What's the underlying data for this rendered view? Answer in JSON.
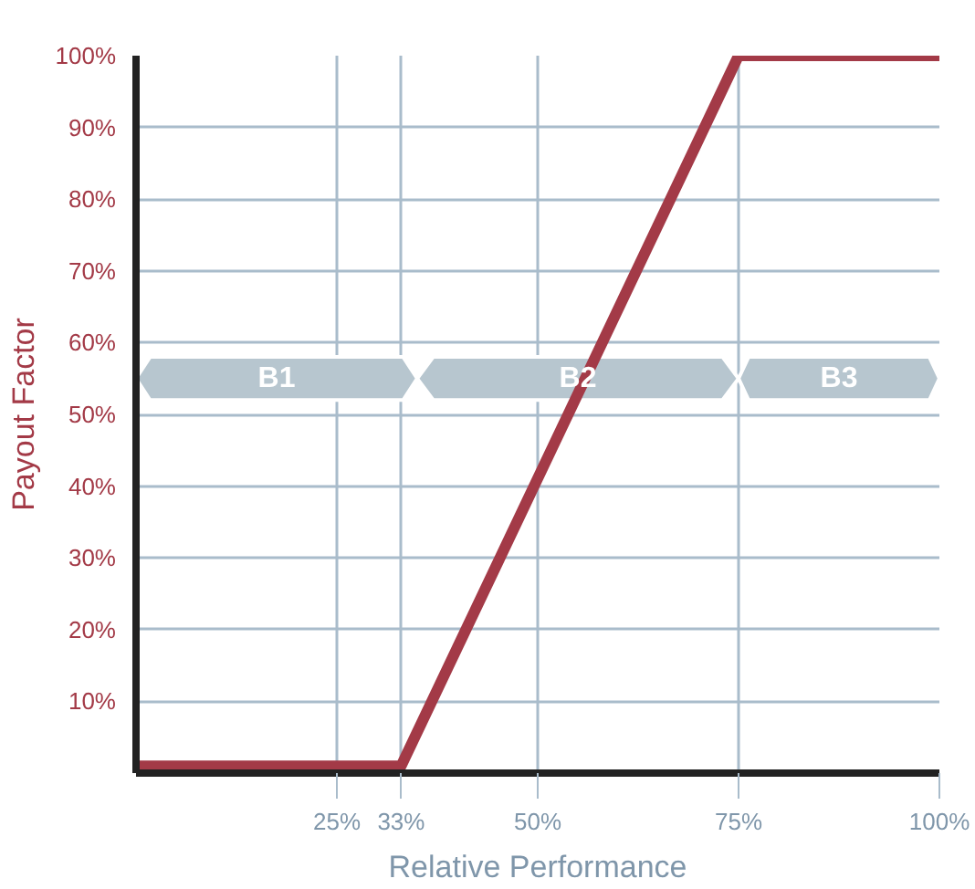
{
  "chart_data": {
    "type": "line",
    "xlabel": "Relative Performance",
    "ylabel": "Payout Factor",
    "x": [
      0,
      33,
      75,
      100
    ],
    "series": [
      {
        "color": "#a33a47",
        "values": [
          1,
          1,
          100,
          100
        ]
      }
    ],
    "xlim": [
      0,
      100
    ],
    "ylim": [
      0,
      100
    ],
    "xticks": [
      {
        "value": 25,
        "label": "25%"
      },
      {
        "value": 33,
        "label": "33%"
      },
      {
        "value": 50,
        "label": "50%"
      },
      {
        "value": 75,
        "label": "75%"
      },
      {
        "value": 100,
        "label": "100%"
      }
    ],
    "yticks": [
      {
        "value": 10,
        "label": "10%"
      },
      {
        "value": 20,
        "label": "20%"
      },
      {
        "value": 30,
        "label": "30%"
      },
      {
        "value": 40,
        "label": "40%"
      },
      {
        "value": 50,
        "label": "50%"
      },
      {
        "value": 60,
        "label": "60%"
      },
      {
        "value": 70,
        "label": "70%"
      },
      {
        "value": 80,
        "label": "80%"
      },
      {
        "value": 90,
        "label": "90%"
      },
      {
        "value": 100,
        "label": "100%"
      }
    ],
    "bands": [
      {
        "axis": "x",
        "from": 0,
        "to": 35,
        "label": "B1",
        "color": "#b7c6cf"
      },
      {
        "axis": "x",
        "from": 35,
        "to": 75,
        "label": "B2",
        "color": "#b7c6cf"
      },
      {
        "axis": "x",
        "from": 75,
        "to": 100,
        "label": "B3",
        "color": "#b7c6cf"
      }
    ],
    "grid": true,
    "marker": "none",
    "line_style": "solid"
  }
}
